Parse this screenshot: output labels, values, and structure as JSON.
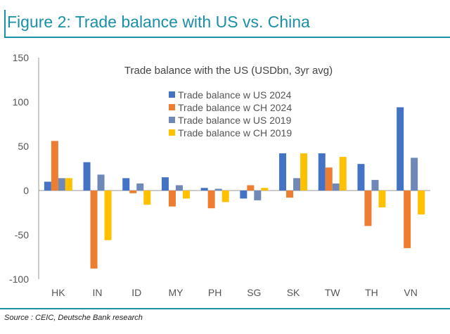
{
  "figure_title": "Figure 2: Trade balance with US vs. China",
  "source": "Source : CEIC, Deutsche Bank research",
  "chart_data": {
    "type": "bar",
    "title": "Trade balance with the US (USDbn, 3yr avg)",
    "xlabel": "",
    "ylabel": "",
    "ylim": [
      -100,
      150
    ],
    "yticks": [
      -100,
      -50,
      0,
      50,
      100,
      150
    ],
    "legend_position": "top-center",
    "categories": [
      "HK",
      "IN",
      "ID",
      "MY",
      "PH",
      "SG",
      "SK",
      "TW",
      "TH",
      "VN"
    ],
    "series": [
      {
        "name": "Trade balance w US 2024",
        "color": "#4472c4",
        "values": [
          10,
          32,
          14,
          15,
          3,
          -9,
          42,
          42,
          30,
          94
        ]
      },
      {
        "name": "Trade balance w CH 2024",
        "color": "#ed7d31",
        "values": [
          56,
          -88,
          -3,
          -18,
          -20,
          6,
          -8,
          26,
          -40,
          -65
        ]
      },
      {
        "name": "Trade balance w US 2019",
        "color": "#7088b8",
        "values": [
          14,
          18,
          8,
          6,
          2,
          -11,
          14,
          8,
          12,
          37
        ]
      },
      {
        "name": "Trade balance w CH 2019",
        "color": "#ffc000",
        "values": [
          14,
          -56,
          -16,
          -9,
          -13,
          3,
          42,
          38,
          -19,
          -27
        ]
      }
    ]
  }
}
